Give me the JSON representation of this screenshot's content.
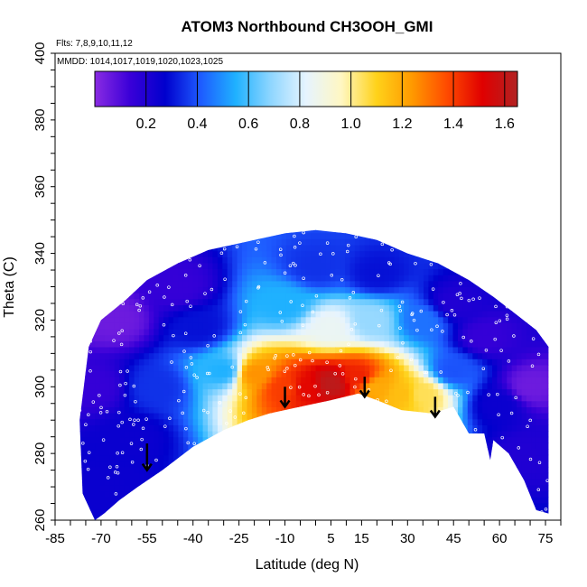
{
  "chart_data": {
    "type": "heatmap",
    "title": "ATOM3 Northbound CH3OOH_GMI",
    "notes": {
      "flights": "Flts: 7,8,9,10,11,12",
      "mmdd": "MMDD: 1014,1017,1019,1020,1023,1025"
    },
    "xlabel": "Latitude (deg N)",
    "ylabel": "Theta (C)",
    "xlim": [
      -85,
      80
    ],
    "ylim": [
      260,
      400
    ],
    "x_tick_labels": [
      "-85",
      "-70",
      "-55",
      "-40",
      "-25",
      "-10",
      "5",
      "15",
      "30",
      "45",
      "60",
      "75"
    ],
    "x_ticks": [
      -85,
      -70,
      -55,
      -40,
      -25,
      -10,
      5,
      15,
      30,
      45,
      60,
      75
    ],
    "y_tick_labels": [
      "260",
      "280",
      "300",
      "320",
      "340",
      "360",
      "380",
      "400"
    ],
    "y_ticks": [
      260,
      280,
      300,
      320,
      340,
      360,
      380,
      400
    ],
    "colorbar": {
      "range": [
        0.0,
        1.65
      ],
      "tick_labels": [
        "0.2",
        "0.4",
        "0.6",
        "0.8",
        "1.0",
        "1.2",
        "1.4",
        "1.6"
      ],
      "ticks": [
        0.2,
        0.4,
        0.6,
        0.8,
        1.0,
        1.2,
        1.4,
        1.6
      ],
      "colors": [
        "#8a2be2",
        "#3a00d8",
        "#0000cd",
        "#1e5bff",
        "#1fb1ff",
        "#8fd6ff",
        "#e6f4ff",
        "#fff7c2",
        "#ffd21a",
        "#ff9a00",
        "#ff4a00",
        "#e00000",
        "#b22222"
      ]
    },
    "domain_boundary_top": [
      [
        -74,
        312
      ],
      [
        -70,
        320
      ],
      [
        -62,
        326
      ],
      [
        -55,
        332
      ],
      [
        -45,
        337
      ],
      [
        -35,
        341
      ],
      [
        -20,
        344
      ],
      [
        -10,
        346
      ],
      [
        0,
        347
      ],
      [
        10,
        346
      ],
      [
        20,
        344
      ],
      [
        30,
        340
      ],
      [
        40,
        337
      ],
      [
        50,
        332
      ],
      [
        58,
        327
      ],
      [
        65,
        322
      ],
      [
        72,
        317
      ],
      [
        76,
        312
      ]
    ],
    "domain_boundary_bottom": [
      [
        76,
        262
      ],
      [
        72,
        263
      ],
      [
        68,
        272
      ],
      [
        63,
        280
      ],
      [
        58,
        284
      ],
      [
        57,
        278
      ],
      [
        55,
        286
      ],
      [
        50,
        286
      ],
      [
        45,
        294
      ],
      [
        38,
        292
      ],
      [
        28,
        293
      ],
      [
        20,
        296
      ],
      [
        14,
        298
      ],
      [
        5,
        296
      ],
      [
        -5,
        294
      ],
      [
        -15,
        292
      ],
      [
        -22,
        290
      ],
      [
        -30,
        287
      ],
      [
        -40,
        282
      ],
      [
        -50,
        275
      ],
      [
        -58,
        270
      ],
      [
        -64,
        266
      ],
      [
        -69,
        262
      ],
      [
        -72,
        260
      ],
      [
        -76,
        268
      ],
      [
        -77,
        290
      ]
    ],
    "field_centers": [
      {
        "lat": -72,
        "theta": 300,
        "value": 0.15
      },
      {
        "lat": -65,
        "theta": 320,
        "value": 0.05
      },
      {
        "lat": -60,
        "theta": 285,
        "value": 0.25
      },
      {
        "lat": -52,
        "theta": 300,
        "value": 0.35
      },
      {
        "lat": -45,
        "theta": 330,
        "value": 0.15
      },
      {
        "lat": -38,
        "theta": 318,
        "value": 0.3
      },
      {
        "lat": -30,
        "theta": 305,
        "value": 0.55
      },
      {
        "lat": -20,
        "theta": 304,
        "value": 1.25
      },
      {
        "lat": -10,
        "theta": 300,
        "value": 1.4
      },
      {
        "lat": -3,
        "theta": 300,
        "value": 1.5
      },
      {
        "lat": 5,
        "theta": 301,
        "value": 1.62
      },
      {
        "lat": 14,
        "theta": 303,
        "value": 1.45
      },
      {
        "lat": 20,
        "theta": 300,
        "value": 1.2
      },
      {
        "lat": 28,
        "theta": 298,
        "value": 1.15
      },
      {
        "lat": 35,
        "theta": 298,
        "value": 1.05
      },
      {
        "lat": 5,
        "theta": 318,
        "value": 0.85
      },
      {
        "lat": 18,
        "theta": 320,
        "value": 0.7
      },
      {
        "lat": -10,
        "theta": 325,
        "value": 0.55
      },
      {
        "lat": 0,
        "theta": 336,
        "value": 0.35
      },
      {
        "lat": 20,
        "theta": 334,
        "value": 0.3
      },
      {
        "lat": 35,
        "theta": 320,
        "value": 0.45
      },
      {
        "lat": 45,
        "theta": 305,
        "value": 0.4
      },
      {
        "lat": 45,
        "theta": 325,
        "value": 0.2
      },
      {
        "lat": 55,
        "theta": 315,
        "value": 0.15
      },
      {
        "lat": 60,
        "theta": 295,
        "value": 0.25
      },
      {
        "lat": 70,
        "theta": 300,
        "value": 0.05
      },
      {
        "lat": 68,
        "theta": 280,
        "value": 0.2
      },
      {
        "lat": -65,
        "theta": 270,
        "value": 0.25
      }
    ],
    "arrows": [
      {
        "lat": -55,
        "theta_top": 283,
        "theta_bottom": 275
      },
      {
        "lat": -10,
        "theta_top": 300,
        "theta_bottom": 294
      },
      {
        "lat": 16,
        "theta_top": 303,
        "theta_bottom": 297
      },
      {
        "lat": 39,
        "theta_top": 297,
        "theta_bottom": 291
      }
    ],
    "sample_points_seed": 7,
    "sample_points_count": 420
  }
}
